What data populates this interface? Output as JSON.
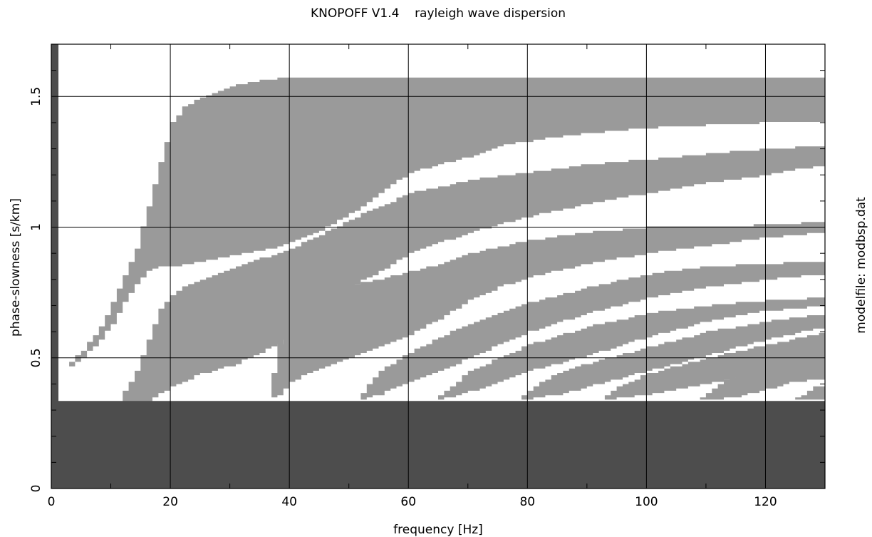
{
  "chart_data": {
    "type": "heatmap",
    "title": "KNOPOFF V1.4    rayleigh wave dispersion",
    "xlabel": "frequency [Hz]",
    "ylabel": "phase-slowness [s/km]",
    "side_label": "modelfile: modbsp.dat",
    "xlim": [
      0,
      130
    ],
    "ylim": [
      0,
      1.7
    ],
    "x_ticks": [
      0,
      20,
      40,
      60,
      80,
      100,
      120
    ],
    "x_tick_labels": [
      "0",
      "20",
      "40",
      "60",
      "80",
      "100",
      "120"
    ],
    "y_ticks": [
      0,
      0.5,
      1,
      1.5
    ],
    "y_tick_labels": [
      "0",
      "0.5",
      "1",
      "1.5"
    ],
    "grid": true,
    "colors": {
      "mode_band": "#9a9a9a",
      "evanescent_region": "#4d4d4d",
      "background": "#ffffff",
      "gridline": "#000000"
    },
    "evanescent_slowness_max": 0.335,
    "slowness_band_top": 1.575,
    "mode_bands": [
      {
        "start_freq": 1,
        "lower": [
          [
            1,
            0.44
          ],
          [
            5,
            0.5
          ],
          [
            8,
            0.57
          ],
          [
            10,
            0.63
          ],
          [
            12,
            0.71
          ],
          [
            14,
            0.78
          ],
          [
            16,
            0.83
          ],
          [
            18,
            0.85
          ],
          [
            20,
            0.85
          ],
          [
            25,
            0.87
          ],
          [
            30,
            0.89
          ],
          [
            35,
            0.91
          ],
          [
            40,
            0.94
          ],
          [
            45,
            0.99
          ],
          [
            50,
            1.05
          ],
          [
            55,
            1.13
          ],
          [
            60,
            1.21
          ],
          [
            65,
            1.24
          ],
          [
            70,
            1.27
          ],
          [
            75,
            1.31
          ],
          [
            80,
            1.33
          ],
          [
            90,
            1.36
          ],
          [
            100,
            1.38
          ],
          [
            110,
            1.39
          ],
          [
            120,
            1.4
          ],
          [
            130,
            1.4
          ]
        ],
        "upper": [
          [
            1,
            0.44
          ],
          [
            5,
            0.53
          ],
          [
            8,
            0.62
          ],
          [
            10,
            0.71
          ],
          [
            12,
            0.82
          ],
          [
            14,
            0.92
          ],
          [
            15,
            1.0
          ],
          [
            16,
            1.08
          ],
          [
            18,
            1.25
          ],
          [
            20,
            1.4
          ],
          [
            22,
            1.46
          ],
          [
            25,
            1.5
          ],
          [
            30,
            1.54
          ],
          [
            35,
            1.56
          ],
          [
            40,
            1.575
          ],
          [
            130,
            1.575
          ]
        ]
      },
      {
        "start_freq": 11,
        "lower": [
          [
            11,
            0.335
          ],
          [
            16,
            0.335
          ],
          [
            20,
            0.39
          ],
          [
            25,
            0.44
          ],
          [
            30,
            0.47
          ],
          [
            35,
            0.52
          ],
          [
            40,
            0.58
          ],
          [
            45,
            0.68
          ],
          [
            50,
            0.77
          ],
          [
            53,
            0.81
          ],
          [
            55,
            0.83
          ],
          [
            60,
            0.9
          ],
          [
            70,
            0.98
          ],
          [
            80,
            1.04
          ],
          [
            90,
            1.09
          ],
          [
            100,
            1.13
          ],
          [
            110,
            1.17
          ],
          [
            120,
            1.2
          ],
          [
            130,
            1.24
          ]
        ],
        "upper": [
          [
            11,
            0.335
          ],
          [
            14,
            0.45
          ],
          [
            16,
            0.57
          ],
          [
            18,
            0.69
          ],
          [
            20,
            0.74
          ],
          [
            22,
            0.77
          ],
          [
            25,
            0.8
          ],
          [
            30,
            0.84
          ],
          [
            35,
            0.88
          ],
          [
            40,
            0.92
          ],
          [
            45,
            0.97
          ],
          [
            50,
            1.03
          ],
          [
            55,
            1.08
          ],
          [
            60,
            1.13
          ],
          [
            70,
            1.18
          ],
          [
            80,
            1.21
          ],
          [
            90,
            1.24
          ],
          [
            100,
            1.26
          ],
          [
            110,
            1.28
          ],
          [
            120,
            1.3
          ],
          [
            130,
            1.31
          ]
        ]
      },
      {
        "start_freq": 36,
        "lower": [
          [
            36,
            0.335
          ],
          [
            38,
            0.36
          ],
          [
            40,
            0.41
          ],
          [
            45,
            0.46
          ],
          [
            50,
            0.5
          ],
          [
            55,
            0.54
          ],
          [
            60,
            0.59
          ],
          [
            65,
            0.65
          ],
          [
            70,
            0.72
          ],
          [
            75,
            0.77
          ],
          [
            80,
            0.81
          ],
          [
            90,
            0.86
          ],
          [
            100,
            0.9
          ],
          [
            110,
            0.93
          ],
          [
            120,
            0.96
          ],
          [
            130,
            0.98
          ]
        ],
        "upper": [
          [
            36,
            0.335
          ],
          [
            38,
            0.55
          ],
          [
            40,
            0.63
          ],
          [
            43,
            0.72
          ],
          [
            47,
            0.76
          ],
          [
            50,
            0.78
          ],
          [
            55,
            0.8
          ],
          [
            60,
            0.83
          ],
          [
            65,
            0.86
          ],
          [
            70,
            0.9
          ],
          [
            80,
            0.95
          ],
          [
            90,
            0.98
          ],
          [
            100,
            1.0
          ],
          [
            110,
            1.0
          ],
          [
            120,
            1.01
          ],
          [
            130,
            1.02
          ]
        ]
      },
      {
        "start_freq": 51,
        "lower": [
          [
            51,
            0.335
          ],
          [
            55,
            0.36
          ],
          [
            60,
            0.41
          ],
          [
            65,
            0.45
          ],
          [
            70,
            0.5
          ],
          [
            75,
            0.55
          ],
          [
            80,
            0.6
          ],
          [
            90,
            0.67
          ],
          [
            100,
            0.73
          ],
          [
            110,
            0.77
          ],
          [
            120,
            0.8
          ],
          [
            130,
            0.82
          ]
        ],
        "upper": [
          [
            51,
            0.335
          ],
          [
            53,
            0.4
          ],
          [
            55,
            0.45
          ],
          [
            60,
            0.52
          ],
          [
            65,
            0.58
          ],
          [
            70,
            0.63
          ],
          [
            75,
            0.67
          ],
          [
            80,
            0.71
          ],
          [
            90,
            0.77
          ],
          [
            100,
            0.82
          ],
          [
            110,
            0.85
          ],
          [
            120,
            0.86
          ],
          [
            130,
            0.87
          ]
        ]
      },
      {
        "start_freq": 64,
        "lower": [
          [
            64,
            0.335
          ],
          [
            70,
            0.37
          ],
          [
            75,
            0.41
          ],
          [
            80,
            0.45
          ],
          [
            90,
            0.51
          ],
          [
            100,
            0.58
          ],
          [
            110,
            0.64
          ],
          [
            120,
            0.68
          ],
          [
            130,
            0.7
          ]
        ],
        "upper": [
          [
            64,
            0.335
          ],
          [
            68,
            0.41
          ],
          [
            70,
            0.45
          ],
          [
            75,
            0.5
          ],
          [
            80,
            0.55
          ],
          [
            90,
            0.62
          ],
          [
            100,
            0.67
          ],
          [
            110,
            0.7
          ],
          [
            120,
            0.72
          ],
          [
            130,
            0.73
          ]
        ]
      },
      {
        "start_freq": 78,
        "lower": [
          [
            78,
            0.335
          ],
          [
            85,
            0.36
          ],
          [
            90,
            0.39
          ],
          [
            100,
            0.45
          ],
          [
            110,
            0.51
          ],
          [
            120,
            0.57
          ],
          [
            130,
            0.62
          ]
        ],
        "upper": [
          [
            78,
            0.335
          ],
          [
            82,
            0.41
          ],
          [
            85,
            0.44
          ],
          [
            90,
            0.48
          ],
          [
            100,
            0.54
          ],
          [
            110,
            0.6
          ],
          [
            120,
            0.64
          ],
          [
            130,
            0.67
          ]
        ]
      },
      {
        "start_freq": 92,
        "lower": [
          [
            92,
            0.335
          ],
          [
            100,
            0.36
          ],
          [
            110,
            0.4
          ],
          [
            120,
            0.45
          ],
          [
            130,
            0.5
          ]
        ],
        "upper": [
          [
            92,
            0.335
          ],
          [
            95,
            0.39
          ],
          [
            100,
            0.44
          ],
          [
            110,
            0.5
          ],
          [
            120,
            0.55
          ],
          [
            130,
            0.6
          ]
        ]
      },
      {
        "start_freq": 108,
        "lower": [
          [
            108,
            0.335
          ],
          [
            115,
            0.35
          ],
          [
            120,
            0.38
          ],
          [
            125,
            0.41
          ],
          [
            130,
            0.42
          ]
        ],
        "upper": [
          [
            108,
            0.335
          ],
          [
            112,
            0.4
          ],
          [
            115,
            0.44
          ],
          [
            120,
            0.5
          ],
          [
            125,
            0.54
          ],
          [
            130,
            0.57
          ]
        ]
      },
      {
        "start_freq": 123,
        "lower": [
          [
            123,
            0.335
          ],
          [
            127,
            0.34
          ],
          [
            130,
            0.34
          ]
        ],
        "upper": [
          [
            123,
            0.335
          ],
          [
            126,
            0.36
          ],
          [
            128,
            0.39
          ],
          [
            130,
            0.4
          ]
        ]
      }
    ]
  }
}
